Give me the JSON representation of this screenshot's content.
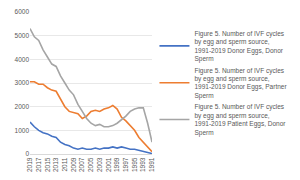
{
  "chart_data": {
    "type": "line",
    "x": [
      2019,
      2018,
      2017,
      2016,
      2015,
      2014,
      2013,
      2012,
      2011,
      2010,
      2009,
      2008,
      2007,
      2006,
      2005,
      2004,
      2003,
      2002,
      2001,
      2000,
      1999,
      1998,
      1997,
      1996,
      1995,
      1994,
      1993,
      1992,
      1991
    ],
    "xlim": [
      2019,
      1991
    ],
    "xticks": [
      2019,
      2017,
      2015,
      2013,
      2011,
      2009,
      2007,
      2005,
      2003,
      2001,
      1999,
      1997,
      1995,
      1993,
      1991
    ],
    "ylim": [
      0,
      6000
    ],
    "yticks": [
      0,
      1000,
      2000,
      3000,
      4000,
      5000,
      6000
    ],
    "grid": true,
    "legend": "right",
    "series": [
      {
        "name": "Figure 5. Number of IVF cycles by egg and sperm source, 1991-2019 Donor Eggs, Donor Sperm",
        "color": "#4472c4",
        "values": [
          1350,
          1150,
          1000,
          900,
          850,
          750,
          700,
          500,
          400,
          350,
          250,
          200,
          250,
          200,
          200,
          250,
          200,
          250,
          250,
          300,
          250,
          300,
          250,
          200,
          200,
          150,
          100,
          50,
          20
        ]
      },
      {
        "name": "Figure 5. Number of IVF cycles by egg and sperm source, 1991-2019 Donor Eggs, Partner Sperm",
        "color": "#ed7d31",
        "values": [
          3050,
          3050,
          2950,
          2950,
          2800,
          2700,
          2650,
          2300,
          2000,
          1800,
          1750,
          1700,
          1500,
          1600,
          1800,
          1850,
          1800,
          1900,
          1950,
          2050,
          1900,
          1550,
          1400,
          1200,
          1000,
          700,
          500,
          300,
          100
        ]
      },
      {
        "name": "Figure 5. Number of IVF cycles by egg and sperm source, 1991-2019 Patient Eggs, Donor Sperm",
        "color": "#a5a5a5",
        "values": [
          5300,
          4950,
          4800,
          4400,
          4100,
          3800,
          3700,
          3300,
          3000,
          2700,
          2500,
          2100,
          1800,
          1500,
          1300,
          1200,
          1250,
          1150,
          1150,
          1200,
          1300,
          1450,
          1600,
          1800,
          1900,
          1950,
          1950,
          1300,
          500
        ]
      }
    ]
  }
}
